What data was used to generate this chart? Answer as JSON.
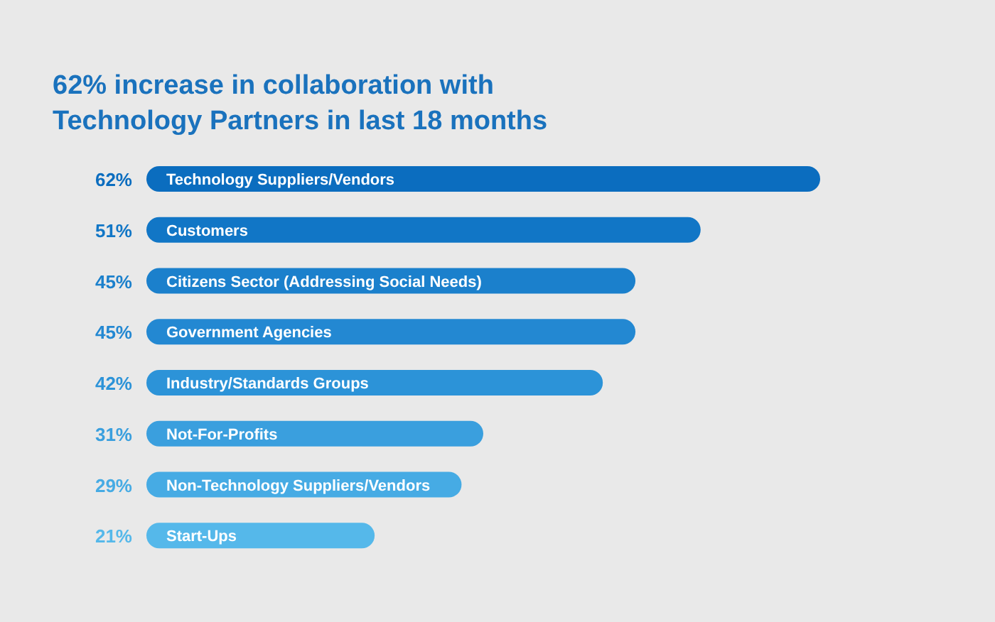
{
  "chart_data": {
    "type": "bar",
    "orientation": "horizontal",
    "title": "62% increase in collaboration with Technology Partners in last 18 months",
    "categories": [
      "Technology Suppliers/Vendors",
      "Customers",
      "Citizens Sector (Addressing Social Needs)",
      "Government Agencies",
      "Industry/Standards Groups",
      "Not-For-Profits",
      "Non-Technology Suppliers/Vendors",
      "Start-Ups"
    ],
    "values": [
      62,
      51,
      45,
      45,
      42,
      31,
      29,
      21
    ],
    "value_labels": [
      "62%",
      "51%",
      "45%",
      "45%",
      "42%",
      "31%",
      "29%",
      "21%"
    ],
    "colors": [
      "#0b6dbf",
      "#1176c6",
      "#1b80cc",
      "#2388d2",
      "#2c93d8",
      "#3a9fde",
      "#46abe4",
      "#55b8ea"
    ]
  }
}
